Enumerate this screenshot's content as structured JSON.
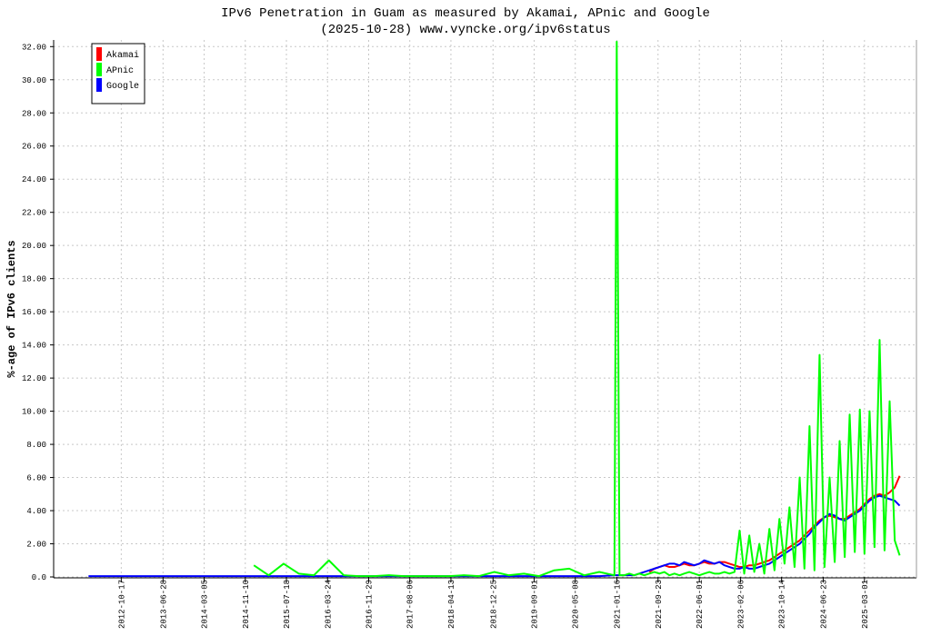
{
  "chart_data": {
    "type": "line",
    "title": "IPv6 Penetration in Guam as measured by Akamai, APnic and Google",
    "subtitle": "(2025-10-28) www.vyncke.org/ipv6status",
    "y_label": "%-age of IPv6 clients",
    "x": [
      "2012-04-01",
      "2012-07-01",
      "2012-10-01",
      "2013-01-01",
      "2013-04-01",
      "2013-07-01",
      "2013-10-01",
      "2014-01-01",
      "2014-04-01",
      "2014-07-01",
      "2014-10-01",
      "2015-01-01",
      "2015-04-01",
      "2015-07-01",
      "2015-10-01",
      "2016-01-01",
      "2016-04-01",
      "2016-07-01",
      "2016-10-01",
      "2017-01-01",
      "2017-04-01",
      "2017-07-01",
      "2017-10-01",
      "2018-01-01",
      "2018-04-01",
      "2018-07-01",
      "2018-10-01",
      "2019-01-01",
      "2019-04-01",
      "2019-07-01",
      "2019-10-01",
      "2020-01-01",
      "2020-04-01",
      "2020-07-01",
      "2020-10-01",
      "2021-01-01",
      "2021-01-15",
      "2021-02-01",
      "2021-03-01",
      "2021-04-01",
      "2021-05-01",
      "2021-06-01",
      "2021-07-01",
      "2021-08-01",
      "2021-09-01",
      "2021-10-01",
      "2021-11-01",
      "2021-12-01",
      "2022-01-01",
      "2022-02-01",
      "2022-03-01",
      "2022-04-01",
      "2022-05-01",
      "2022-06-01",
      "2022-07-01",
      "2022-08-01",
      "2022-09-01",
      "2022-10-01",
      "2022-11-01",
      "2022-12-01",
      "2023-01-01",
      "2023-02-01",
      "2023-03-01",
      "2023-04-01",
      "2023-05-01",
      "2023-06-01",
      "2023-07-01",
      "2023-08-01",
      "2023-09-01",
      "2023-10-01",
      "2023-11-01",
      "2023-12-01",
      "2024-01-01",
      "2024-02-01",
      "2024-03-01",
      "2024-04-01",
      "2024-05-01",
      "2024-06-01",
      "2024-07-01",
      "2024-08-01",
      "2024-09-01",
      "2024-10-01",
      "2024-11-01",
      "2024-12-01",
      "2025-01-01",
      "2025-02-01",
      "2025-03-01",
      "2025-04-01",
      "2025-05-01",
      "2025-06-01",
      "2025-07-01",
      "2025-08-01",
      "2025-09-01",
      "2025-10-01"
    ],
    "series": [
      {
        "name": "Akamai",
        "color": "#ff0000",
        "values": [
          null,
          null,
          null,
          null,
          null,
          null,
          null,
          null,
          null,
          null,
          null,
          null,
          null,
          null,
          null,
          null,
          null,
          null,
          null,
          null,
          null,
          null,
          null,
          null,
          null,
          null,
          null,
          null,
          null,
          null,
          null,
          null,
          null,
          null,
          null,
          null,
          null,
          null,
          null,
          null,
          null,
          null,
          null,
          0.3,
          0.5,
          0.6,
          0.7,
          0.6,
          0.6,
          0.7,
          0.8,
          0.7,
          0.7,
          0.8,
          0.9,
          0.8,
          0.8,
          0.9,
          0.9,
          0.8,
          0.7,
          0.6,
          0.6,
          0.7,
          0.7,
          0.8,
          0.9,
          1.0,
          1.2,
          1.4,
          1.6,
          1.8,
          2.0,
          2.2,
          2.5,
          2.8,
          3.1,
          3.4,
          3.6,
          3.7,
          3.6,
          3.5,
          3.5,
          3.7,
          3.9,
          4.1,
          4.4,
          4.7,
          4.9,
          5.0,
          4.9,
          5.1,
          5.4,
          6.1
        ]
      },
      {
        "name": "Google",
        "color": "#0000ff",
        "values": [
          0.05,
          0.05,
          0.05,
          0.05,
          0.05,
          0.05,
          0.05,
          0.05,
          0.05,
          0.05,
          0.05,
          0.05,
          0.05,
          0.05,
          0.05,
          0.05,
          0.05,
          0.05,
          0.05,
          0.05,
          0.05,
          0.05,
          0.05,
          0.05,
          0.05,
          0.05,
          0.05,
          0.05,
          0.05,
          0.05,
          0.05,
          0.05,
          0.05,
          0.05,
          0.05,
          0.1,
          0.1,
          0.1,
          0.1,
          0.1,
          0.1,
          0.2,
          0.3,
          0.4,
          0.5,
          0.6,
          0.7,
          0.8,
          0.8,
          0.7,
          0.9,
          0.8,
          0.7,
          0.8,
          1.0,
          0.9,
          0.8,
          0.9,
          0.7,
          0.6,
          0.5,
          0.5,
          0.6,
          0.5,
          0.5,
          0.6,
          0.7,
          0.8,
          1.0,
          1.2,
          1.4,
          1.6,
          1.8,
          2.0,
          2.3,
          2.6,
          3.0,
          3.3,
          3.6,
          3.8,
          3.7,
          3.5,
          3.4,
          3.6,
          3.8,
          4.0,
          4.3,
          4.6,
          4.8,
          4.9,
          4.8,
          4.7,
          4.6,
          4.3
        ]
      },
      {
        "name": "APnic",
        "color": "#00ff00",
        "values": [
          null,
          null,
          null,
          null,
          null,
          null,
          null,
          null,
          null,
          null,
          null,
          0.7,
          0.1,
          0.8,
          0.2,
          0.1,
          1.0,
          0.1,
          0.05,
          0.05,
          0.1,
          0.05,
          0.05,
          0.05,
          0.05,
          0.1,
          0.05,
          0.3,
          0.1,
          0.2,
          0.05,
          0.4,
          0.5,
          0.1,
          0.3,
          0.1,
          32.3,
          0.1,
          0.1,
          0.2,
          0.1,
          0.2,
          0.1,
          0.2,
          0.3,
          0.2,
          0.3,
          0.1,
          0.2,
          0.1,
          0.2,
          0.3,
          0.2,
          0.1,
          0.2,
          0.3,
          0.2,
          0.2,
          0.3,
          0.2,
          0.3,
          2.8,
          0.2,
          2.5,
          0.3,
          2.0,
          0.2,
          2.9,
          0.4,
          3.5,
          0.8,
          4.2,
          0.6,
          6.0,
          0.5,
          9.1,
          0.4,
          13.4,
          0.6,
          6.0,
          0.9,
          8.2,
          1.2,
          9.8,
          1.5,
          10.1,
          1.4,
          10.0,
          1.8,
          14.3,
          1.6,
          10.6,
          2.2,
          1.3
        ]
      }
    ],
    "legend_order": [
      0,
      2,
      1
    ],
    "legend": "upper left",
    "grid": true,
    "xlim": [
      "2011-09-02",
      "2026-01-11"
    ],
    "xticks": [
      "2012-10-17",
      "2013-06-28",
      "2014-03-05",
      "2014-11-10",
      "2015-07-18",
      "2016-03-24",
      "2016-11-29",
      "2017-08-06",
      "2018-04-13",
      "2018-12-25",
      "2019-09-01",
      "2020-05-08",
      "2021-01-16",
      "2021-09-23",
      "2022-06-01",
      "2023-02-06",
      "2023-10-14",
      "2024-06-23",
      "2025-03-01"
    ],
    "ylim": [
      0,
      32.4
    ],
    "yticks": [
      {
        "value": 0,
        "label": "0.0"
      },
      {
        "value": 2,
        "label": "2.00"
      },
      {
        "value": 4,
        "label": "4.00"
      },
      {
        "value": 6,
        "label": "6.00"
      },
      {
        "value": 8,
        "label": "8.00"
      },
      {
        "value": 10,
        "label": "10.00"
      },
      {
        "value": 12,
        "label": "12.00"
      },
      {
        "value": 14,
        "label": "14.00"
      },
      {
        "value": 16,
        "label": "16.00"
      },
      {
        "value": 18,
        "label": "18.00"
      },
      {
        "value": 20,
        "label": "20.00"
      },
      {
        "value": 22,
        "label": "22.00"
      },
      {
        "value": 24,
        "label": "24.00"
      },
      {
        "value": 26,
        "label": "26.00"
      },
      {
        "value": 28,
        "label": "28.00"
      },
      {
        "value": 30,
        "label": "30.00"
      },
      {
        "value": 32,
        "label": "32.00"
      }
    ]
  }
}
